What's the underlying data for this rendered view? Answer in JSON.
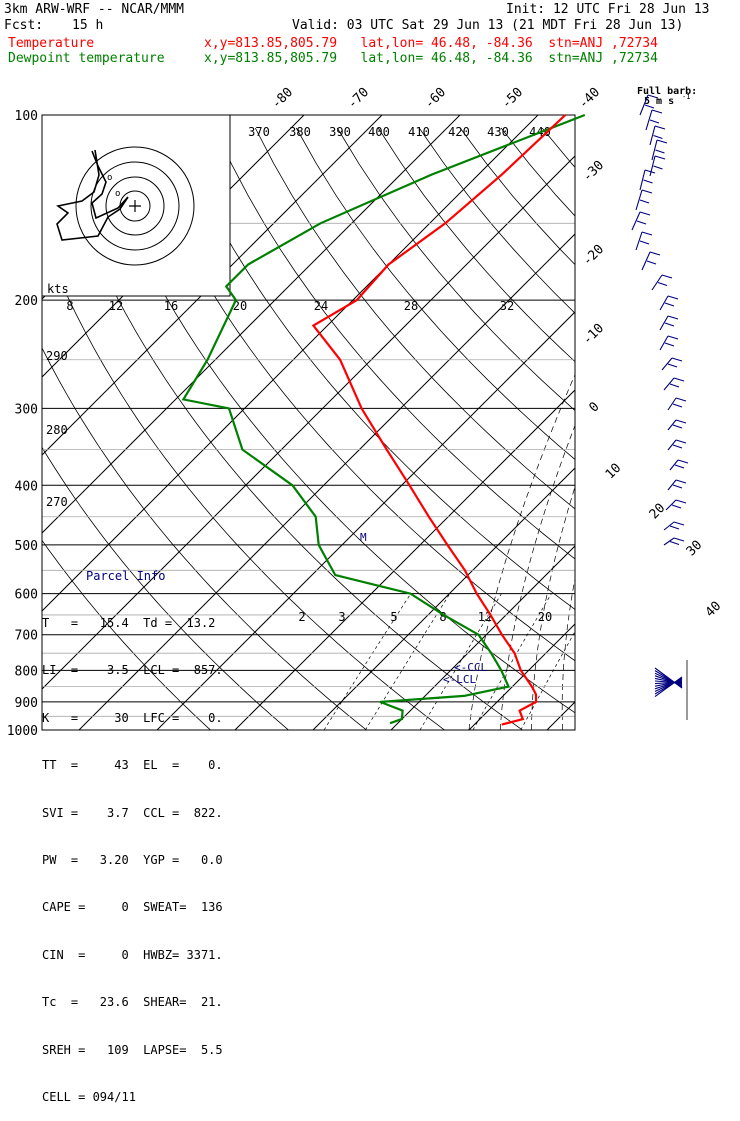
{
  "header": {
    "model": "3km ARW-WRF -- NCAR/MMM",
    "init": "Init: 12 UTC Fri 28 Jun 13",
    "fcst_label": "Fcst:",
    "fcst_value": "15 h",
    "valid": "Valid: 03 UTC Sat 29 Jun 13 (21 MDT Fri 28 Jun 13)",
    "temp_label": "Temperature",
    "dew_label": "Dewpoint temperature",
    "temp_loc": "x,y=813.85,805.79   lat,lon= 46.48, -84.36  stn=ANJ ,72734",
    "dew_loc": "x,y=813.85,805.79   lat,lon= 46.48, -84.36  stn=ANJ ,72734"
  },
  "colors": {
    "temperature": "#ff0000",
    "dewpoint": "#008000",
    "panel_title": "#00007f",
    "wind_barbs": "#00007f"
  },
  "barb_legend": {
    "title": "Full barb:",
    "units": "5 m s"
  },
  "hodograph": {
    "label": "kts"
  },
  "chart_data": {
    "type": "line",
    "subtype": "skew-t log-p",
    "y_scale": "log",
    "ylim": [
      1000,
      100
    ],
    "xlim": [
      -40,
      40
    ],
    "pressure_ticks": [
      "100",
      "200",
      "300",
      "400",
      "500",
      "600",
      "700",
      "800",
      "900",
      "1000"
    ],
    "temp_ticks_top": [
      "-80",
      "-70",
      "-60",
      "-50",
      "-40"
    ],
    "temp_ticks_right": [
      "-30",
      "-20",
      "-10",
      "0",
      "10",
      "20",
      "30",
      "40"
    ],
    "theta_labels_top": [
      "370",
      "380",
      "390",
      "400",
      "410",
      "420",
      "430",
      "440"
    ],
    "theta_labels_left": [
      "290",
      "280",
      "270"
    ],
    "mixing_labels_200": [
      "8",
      "12",
      "16",
      "20",
      "24",
      "28",
      "32"
    ],
    "mixing_labels_700": [
      "2",
      "3",
      "5",
      "8",
      "12",
      "20"
    ],
    "series": [
      {
        "name": "Temperature",
        "points": [
          [
            100,
            -56.5
          ],
          [
            125,
            -57
          ],
          [
            150,
            -58
          ],
          [
            175,
            -60
          ],
          [
            200,
            -59.5
          ],
          [
            220,
            -61.8
          ],
          [
            250,
            -54
          ],
          [
            300,
            -45
          ],
          [
            350,
            -36.5
          ],
          [
            400,
            -29
          ],
          [
            450,
            -22.5
          ],
          [
            500,
            -16.5
          ],
          [
            550,
            -11
          ],
          [
            600,
            -6.5
          ],
          [
            650,
            -2
          ],
          [
            700,
            2
          ],
          [
            750,
            6
          ],
          [
            800,
            9
          ],
          [
            850,
            12.5
          ],
          [
            875,
            14
          ],
          [
            900,
            15
          ],
          [
            930,
            14
          ],
          [
            960,
            15.5
          ],
          [
            980,
            13.5
          ]
        ]
      },
      {
        "name": "Dewpoint temperature",
        "points": [
          [
            100,
            -54
          ],
          [
            125,
            -66
          ],
          [
            150,
            -74
          ],
          [
            175,
            -78
          ],
          [
            190,
            -78
          ],
          [
            200,
            -75
          ],
          [
            250,
            -71
          ],
          [
            290,
            -69
          ],
          [
            300,
            -62
          ],
          [
            350,
            -55
          ],
          [
            400,
            -44
          ],
          [
            450,
            -37
          ],
          [
            500,
            -33
          ],
          [
            560,
            -27
          ],
          [
            600,
            -15
          ],
          [
            650,
            -8
          ],
          [
            700,
            -1
          ],
          [
            750,
            3
          ],
          [
            800,
            6.5
          ],
          [
            850,
            9.5
          ],
          [
            880,
            5
          ],
          [
            900,
            -5
          ],
          [
            930,
            -1
          ],
          [
            960,
            0
          ],
          [
            975,
            -1
          ]
        ]
      }
    ],
    "annotations": [
      "<-CCL",
      "<-LCL",
      "M"
    ]
  },
  "parcel": {
    "title": "Parcel Info",
    "rows": [
      "T   =   15.4  Td =  13.2",
      "LI  =    3.5  LCL =  857.",
      "K   =     30  LFC =    0.",
      "TT  =     43  EL  =    0.",
      "SVI =    3.7  CCL =  822.",
      "PW  =   3.20  YGP =   0.0",
      "CAPE =     0  SWEAT=  136",
      "CIN  =     0  HWBZ= 3371.",
      "Tc  =   23.6  SHEAR=  21.",
      "SREH =   109  LAPSE=  5.5",
      "CELL = 094/11"
    ]
  }
}
